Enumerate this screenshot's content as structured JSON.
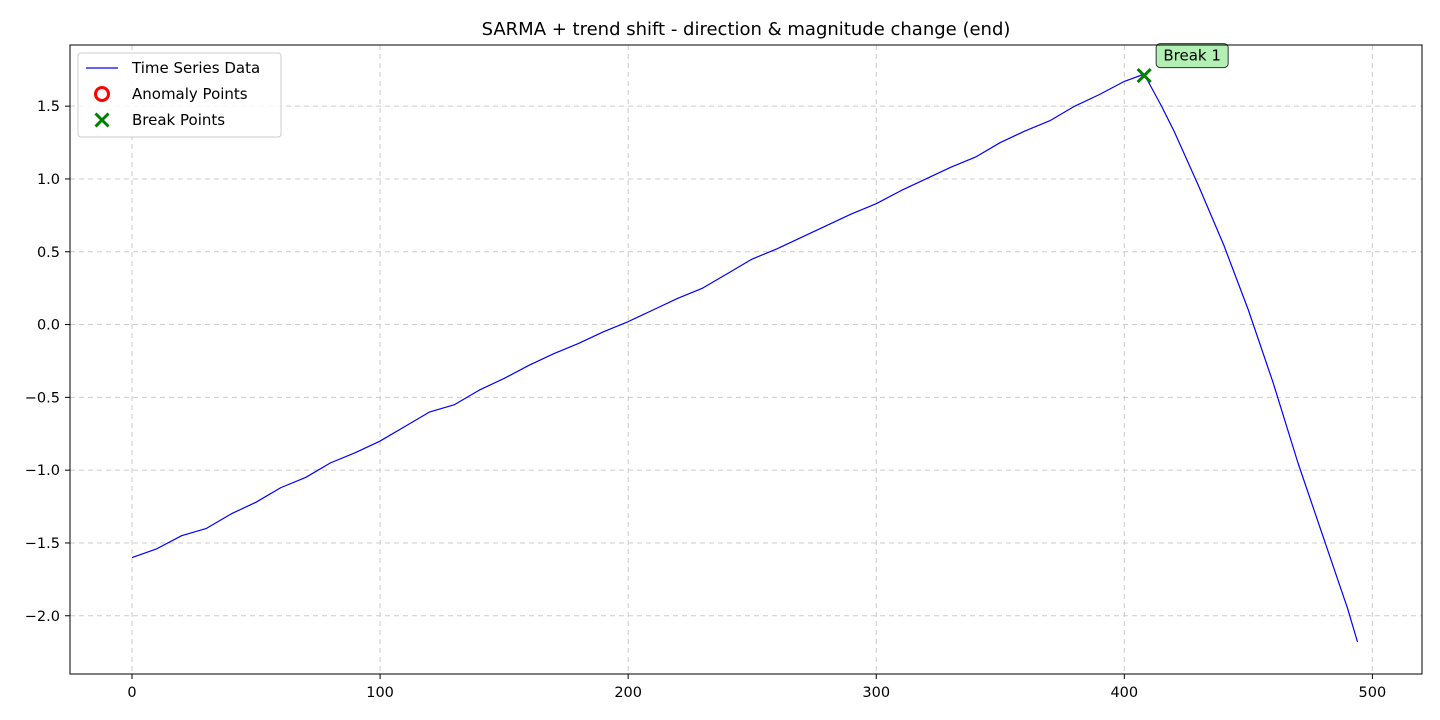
{
  "chart_data": {
    "type": "line",
    "title": "SARMA + trend shift - direction & magnitude change (end)",
    "xlabel": "",
    "ylabel": "",
    "xlim": [
      -25,
      520
    ],
    "ylim": [
      -2.4,
      1.92
    ],
    "x_ticks": [
      0,
      100,
      200,
      300,
      400,
      500
    ],
    "x_tick_labels": [
      "0",
      "100",
      "200",
      "300",
      "400",
      "500"
    ],
    "y_ticks": [
      -2.0,
      -1.5,
      -1.0,
      -0.5,
      0.0,
      0.5,
      1.0,
      1.5
    ],
    "y_tick_labels": [
      "−2.0",
      "−1.5",
      "−1.0",
      "−0.5",
      "0.0",
      "0.5",
      "1.0",
      "1.5"
    ],
    "grid": true,
    "legend_position": "top-left",
    "series": [
      {
        "name": "Time Series Data",
        "color": "#0000ff",
        "kind": "line",
        "x": [
          0,
          10,
          20,
          30,
          40,
          50,
          60,
          70,
          80,
          90,
          100,
          110,
          120,
          130,
          140,
          150,
          160,
          170,
          180,
          190,
          200,
          210,
          220,
          230,
          240,
          250,
          260,
          270,
          280,
          290,
          300,
          310,
          320,
          330,
          340,
          350,
          360,
          370,
          380,
          390,
          400,
          408,
          415,
          420,
          430,
          440,
          450,
          460,
          470,
          480,
          485,
          490,
          494
        ],
        "y": [
          -1.6,
          -1.54,
          -1.45,
          -1.4,
          -1.3,
          -1.22,
          -1.12,
          -1.05,
          -0.95,
          -0.88,
          -0.8,
          -0.7,
          -0.6,
          -0.55,
          -0.45,
          -0.37,
          -0.28,
          -0.2,
          -0.13,
          -0.05,
          0.02,
          0.1,
          0.18,
          0.25,
          0.35,
          0.45,
          0.52,
          0.6,
          0.68,
          0.76,
          0.83,
          0.92,
          1.0,
          1.08,
          1.15,
          1.25,
          1.33,
          1.4,
          1.5,
          1.58,
          1.67,
          1.72,
          1.5,
          1.33,
          0.95,
          0.55,
          0.1,
          -0.4,
          -0.95,
          -1.45,
          -1.7,
          -1.95,
          -2.18
        ]
      },
      {
        "name": "Anomaly Points",
        "color": "#ff0000",
        "kind": "scatter",
        "marker": "circle-open",
        "x": [],
        "y": []
      },
      {
        "name": "Break Points",
        "color": "#008000",
        "kind": "scatter",
        "marker": "x",
        "x": [
          408
        ],
        "y": [
          1.71
        ]
      }
    ],
    "annotations": [
      {
        "text": "Break 1",
        "x": 408,
        "y": 1.71,
        "bg": "#b3f0b3"
      }
    ]
  }
}
